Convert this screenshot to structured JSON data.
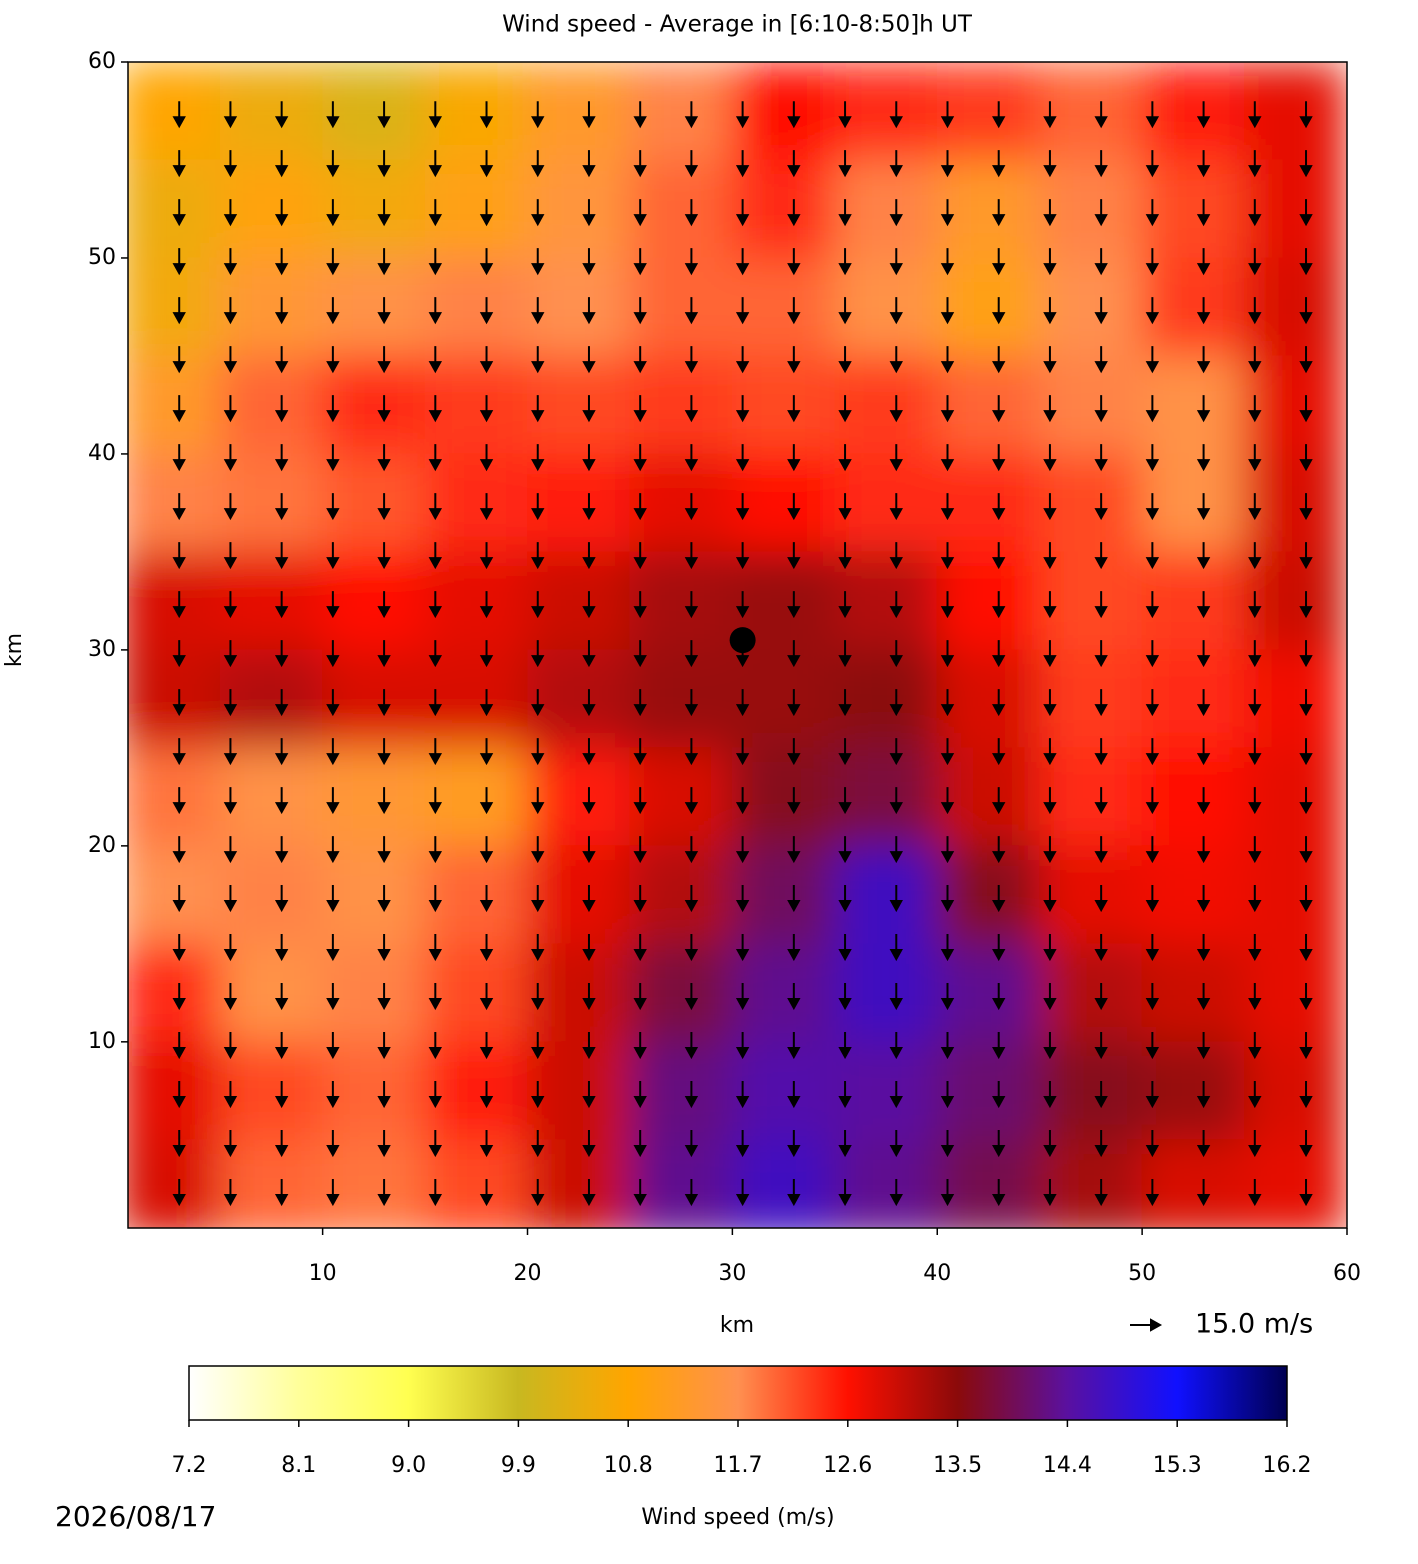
{
  "chart_data": {
    "type": "heatmap",
    "title": "Wind speed - Average in [6:10-8:50]h UT",
    "x_label": "km",
    "y_label": "km",
    "xlim": [
      0.5,
      60
    ],
    "ylim": [
      0.5,
      60
    ],
    "xticks": [
      10,
      20,
      30,
      40,
      50,
      60
    ],
    "yticks": [
      10,
      20,
      30,
      40,
      50,
      60
    ],
    "field": {
      "x": [
        2.5,
        7.5,
        12.5,
        17.5,
        22.5,
        27.5,
        32.5,
        37.5,
        42.5,
        47.5,
        52.5,
        57.5
      ],
      "y": [
        57.5,
        52.5,
        47.5,
        42.5,
        37.5,
        32.5,
        27.5,
        22.5,
        17.5,
        12.5,
        7.5,
        2.5
      ],
      "z": [
        [
          10.8,
          10.5,
          10.2,
          10.7,
          11.3,
          11.8,
          12.6,
          12.4,
          12.3,
          12.0,
          12.5,
          12.8
        ],
        [
          10.5,
          10.9,
          10.6,
          11.0,
          11.5,
          12.0,
          12.4,
          11.8,
          11.3,
          11.8,
          12.2,
          12.8
        ],
        [
          10.6,
          11.4,
          11.6,
          11.8,
          11.7,
          12.0,
          12.0,
          11.6,
          11.0,
          11.7,
          12.3,
          12.9
        ],
        [
          11.3,
          12.0,
          12.4,
          12.3,
          12.2,
          12.3,
          12.2,
          12.3,
          12.0,
          11.8,
          11.6,
          12.8
        ],
        [
          11.8,
          11.9,
          12.1,
          12.4,
          12.5,
          12.8,
          12.6,
          12.4,
          12.4,
          12.2,
          11.6,
          12.9
        ],
        [
          12.9,
          12.8,
          12.6,
          12.8,
          13.0,
          13.3,
          13.4,
          13.2,
          12.6,
          12.2,
          12.3,
          13.0
        ],
        [
          13.0,
          13.2,
          12.9,
          12.9,
          13.2,
          13.4,
          13.4,
          13.5,
          12.9,
          12.3,
          12.4,
          12.7
        ],
        [
          11.9,
          11.6,
          11.4,
          11.2,
          12.5,
          12.9,
          13.6,
          13.8,
          13.0,
          12.4,
          12.6,
          12.8
        ],
        [
          11.7,
          11.8,
          11.6,
          12.0,
          12.8,
          13.2,
          14.0,
          14.7,
          13.6,
          12.8,
          12.7,
          12.8
        ],
        [
          12.4,
          11.6,
          11.8,
          12.2,
          13.0,
          13.8,
          14.3,
          14.7,
          14.3,
          13.2,
          13.0,
          12.8
        ],
        [
          12.8,
          12.2,
          12.0,
          12.5,
          13.0,
          14.2,
          14.5,
          14.4,
          14.1,
          13.6,
          13.4,
          12.9
        ],
        [
          12.9,
          12.0,
          11.9,
          12.2,
          13.0,
          14.3,
          14.7,
          14.3,
          13.9,
          13.3,
          12.9,
          12.8
        ]
      ]
    },
    "quiver": {
      "x": [
        3,
        5.5,
        8,
        10.5,
        13,
        15.5,
        18,
        20.5,
        23,
        25.5,
        28,
        30.5,
        33,
        35.5,
        38,
        40.5,
        43,
        45.5,
        48,
        50.5,
        53,
        55.5,
        58
      ],
      "y": [
        58,
        55.5,
        53,
        50.5,
        48,
        45.5,
        43,
        40.5,
        38,
        35.5,
        33,
        30.5,
        28,
        25.5,
        23,
        20.5,
        18,
        15.5,
        13,
        10.5,
        8,
        5.5,
        3
      ],
      "u": 0,
      "v": -12.5,
      "color": "#000000",
      "key_value": 15,
      "key_label": "15.0 m/s"
    },
    "marker": {
      "x": 30.5,
      "y": 30.5,
      "color": "#000000"
    },
    "colorbar": {
      "label": "Wind speed (m/s)",
      "ticks": [
        7.2,
        8.1,
        {
          "value": 9,
          "label": "9.0"
        },
        9.9,
        10.8,
        11.7,
        12.6,
        13.5,
        14.4,
        15.3,
        16.2
      ],
      "colors": [
        "#ffffff",
        "#ffff9a",
        "#ffff50",
        "#c8b820",
        "#ffa500",
        "#ff9050",
        "#ff1000",
        "#8b0a0a",
        "#5a10a0",
        "#1010ff",
        "#000050"
      ]
    },
    "date": "2026/08/17"
  }
}
